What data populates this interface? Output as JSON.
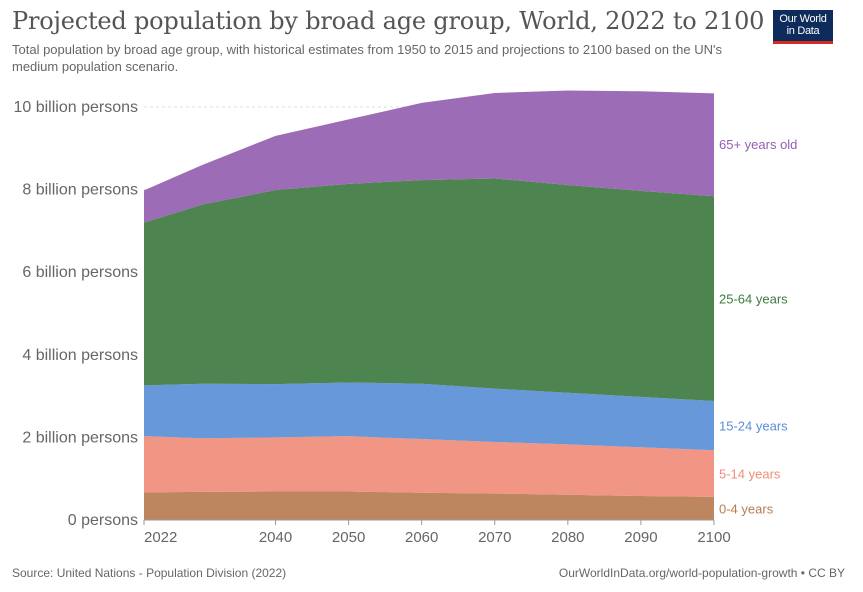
{
  "header": {
    "title": "Projected population by broad age group, World, 2022 to 2100",
    "subtitle": "Total population by broad age group, with historical estimates from 1950 to 2015 and projections to 2100 based on the UN's medium population scenario.",
    "logo_line1": "Our World",
    "logo_line2": "in Data"
  },
  "footer": {
    "source": "Source: United Nations - Population Division (2022)",
    "url": "OurWorldInData.org/world-population-growth • CC BY"
  },
  "colors": {
    "0-4 years": "#b87c50",
    "5-14 years": "#f08c7a",
    "15-24 years": "#5a8fd6",
    "25-64 years": "#3e7a40",
    "65+ years old": "#9460b0"
  },
  "chart_data": {
    "type": "area",
    "stacked": true,
    "x": [
      2022,
      2030,
      2040,
      2050,
      2060,
      2070,
      2080,
      2090,
      2100
    ],
    "series": [
      {
        "name": "0-4 years",
        "values": [
          0.67,
          0.68,
          0.69,
          0.69,
          0.66,
          0.64,
          0.61,
          0.58,
          0.56
        ]
      },
      {
        "name": "5-14 years",
        "values": [
          1.36,
          1.3,
          1.31,
          1.34,
          1.3,
          1.25,
          1.22,
          1.18,
          1.13
        ]
      },
      {
        "name": "15-24 years",
        "values": [
          1.23,
          1.32,
          1.29,
          1.3,
          1.34,
          1.29,
          1.25,
          1.22,
          1.19
        ]
      },
      {
        "name": "25-64 years",
        "values": [
          3.94,
          4.34,
          4.7,
          4.81,
          4.93,
          5.09,
          5.03,
          4.99,
          4.96
        ]
      },
      {
        "name": "65+ years old",
        "values": [
          0.78,
          0.96,
          1.31,
          1.56,
          1.87,
          2.07,
          2.29,
          2.41,
          2.49
        ]
      }
    ],
    "yticks": [
      {
        "value": 0,
        "label": "0 persons"
      },
      {
        "value": 2,
        "label": "2 billion persons"
      },
      {
        "value": 4,
        "label": "4 billion persons"
      },
      {
        "value": 6,
        "label": "6 billion persons"
      },
      {
        "value": 8,
        "label": "8 billion persons"
      },
      {
        "value": 10,
        "label": "10 billion persons"
      }
    ],
    "xticks": [
      2022,
      2040,
      2050,
      2060,
      2070,
      2080,
      2090,
      2100
    ],
    "ylim": [
      0,
      10.5
    ],
    "xlim": [
      2022,
      2100
    ],
    "legend_placement": "inline-right"
  }
}
